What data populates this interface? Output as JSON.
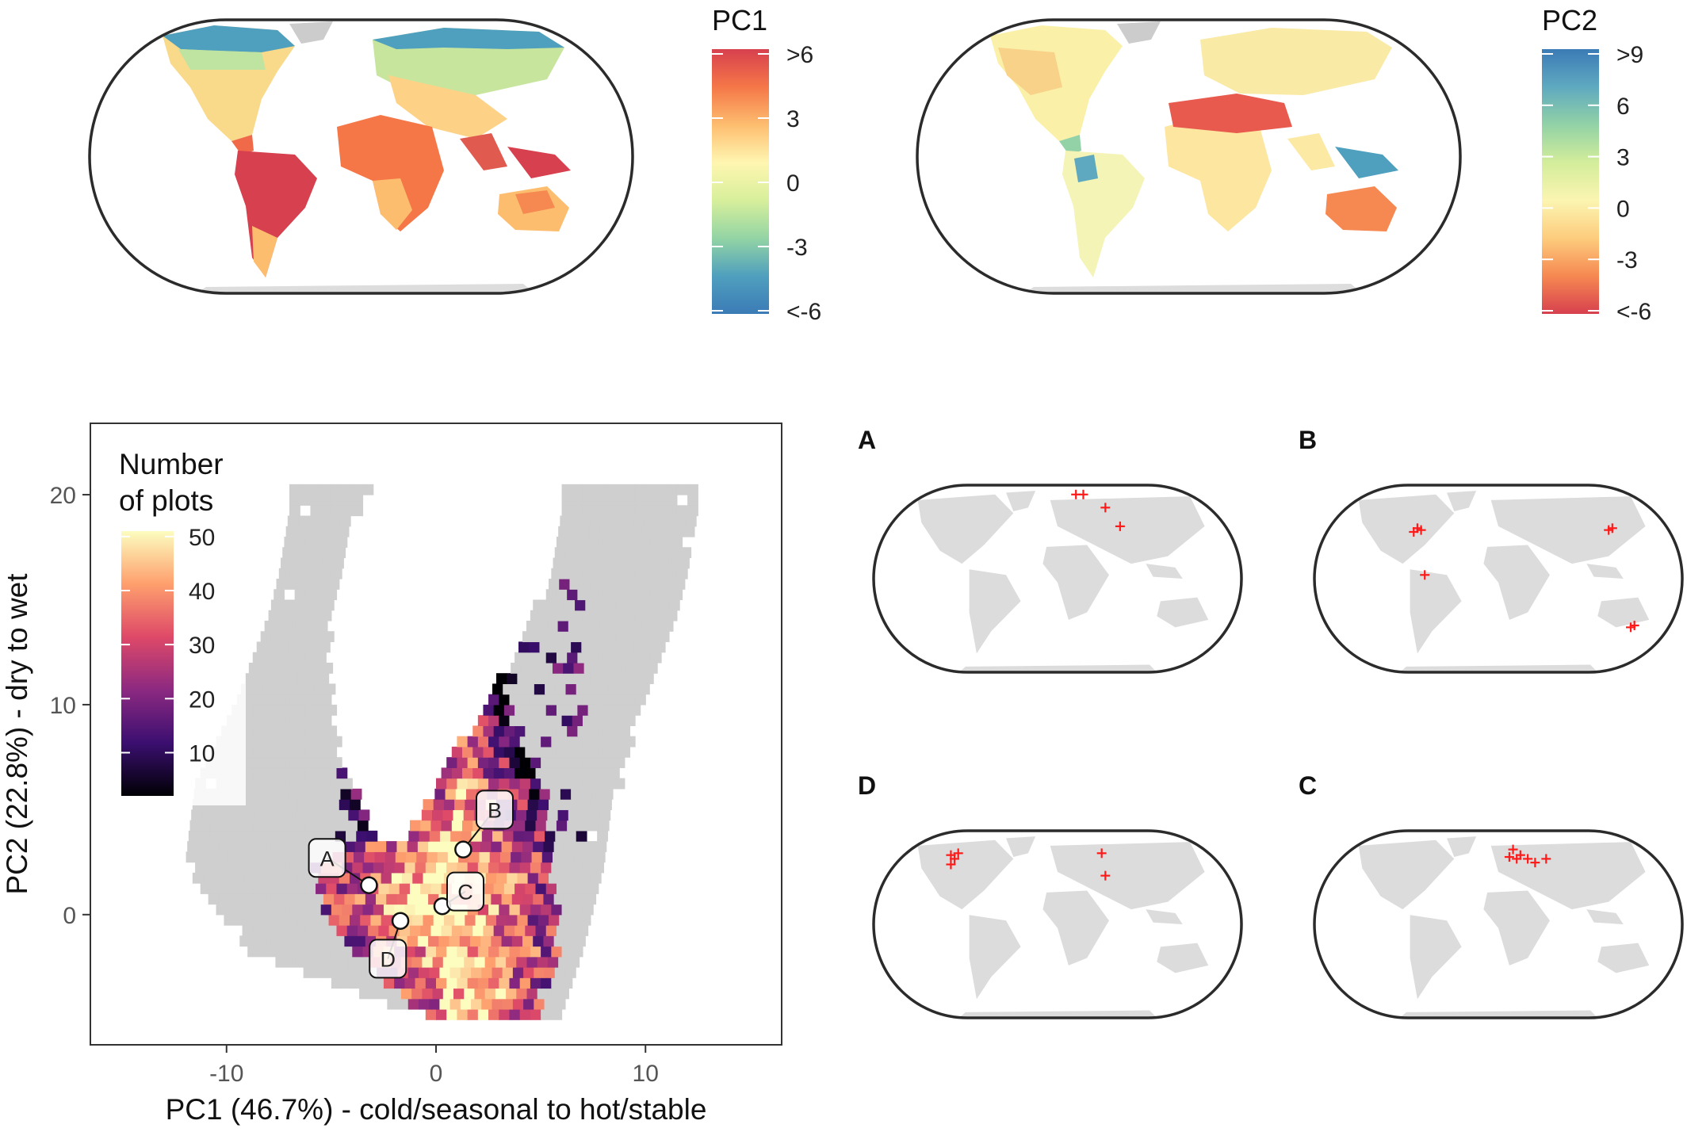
{
  "legends": {
    "pc1": {
      "title": "PC1",
      "labels": [
        ">6",
        "3",
        "0",
        "-3",
        "<-6"
      ],
      "colors": [
        "#d7404e",
        "#f57748",
        "#fdbd6f",
        "#fff6b1",
        "#d7ef9b",
        "#93d4a4",
        "#4f9fbe",
        "#3b7bb6"
      ]
    },
    "pc2": {
      "title": "PC2",
      "labels": [
        ">9",
        "6",
        "3",
        "0",
        "-3",
        "<-6"
      ],
      "colors": [
        "#3b7bb6",
        "#5fa9c0",
        "#92d2a6",
        "#d3ed9b",
        "#fbf5b1",
        "#fdcc7d",
        "#f68851",
        "#d7404e"
      ]
    }
  },
  "chart_data": {
    "type": "heatmap",
    "xlabel": "PC1 (46.7%) - cold/seasonal to hot/stable",
    "ylabel": "PC2 (22.8%) - dry to wet",
    "xlim": [
      -16.5,
      16.5
    ],
    "ylim": [
      -6.2,
      23.4
    ],
    "x_ticks": [
      -10,
      0,
      10
    ],
    "y_ticks": [
      0,
      10,
      20
    ],
    "legend": {
      "title_line1": "Number",
      "title_line2": "of plots",
      "ticks": [
        50,
        40,
        30,
        20,
        10
      ]
    },
    "colorscale": [
      "#000004",
      "#3b0f70",
      "#8c2981",
      "#de4968",
      "#fe9f6d",
      "#fcfdbf"
    ],
    "points": [
      {
        "label": "A",
        "x": -3.2,
        "y": 1.4
      },
      {
        "label": "B",
        "x": 1.3,
        "y": 3.1
      },
      {
        "label": "C",
        "x": 0.3,
        "y": 0.4
      },
      {
        "label": "D",
        "x": -1.7,
        "y": -0.3
      }
    ]
  },
  "insets": [
    {
      "label": "A"
    },
    {
      "label": "B"
    },
    {
      "label": "D"
    },
    {
      "label": "C"
    }
  ]
}
